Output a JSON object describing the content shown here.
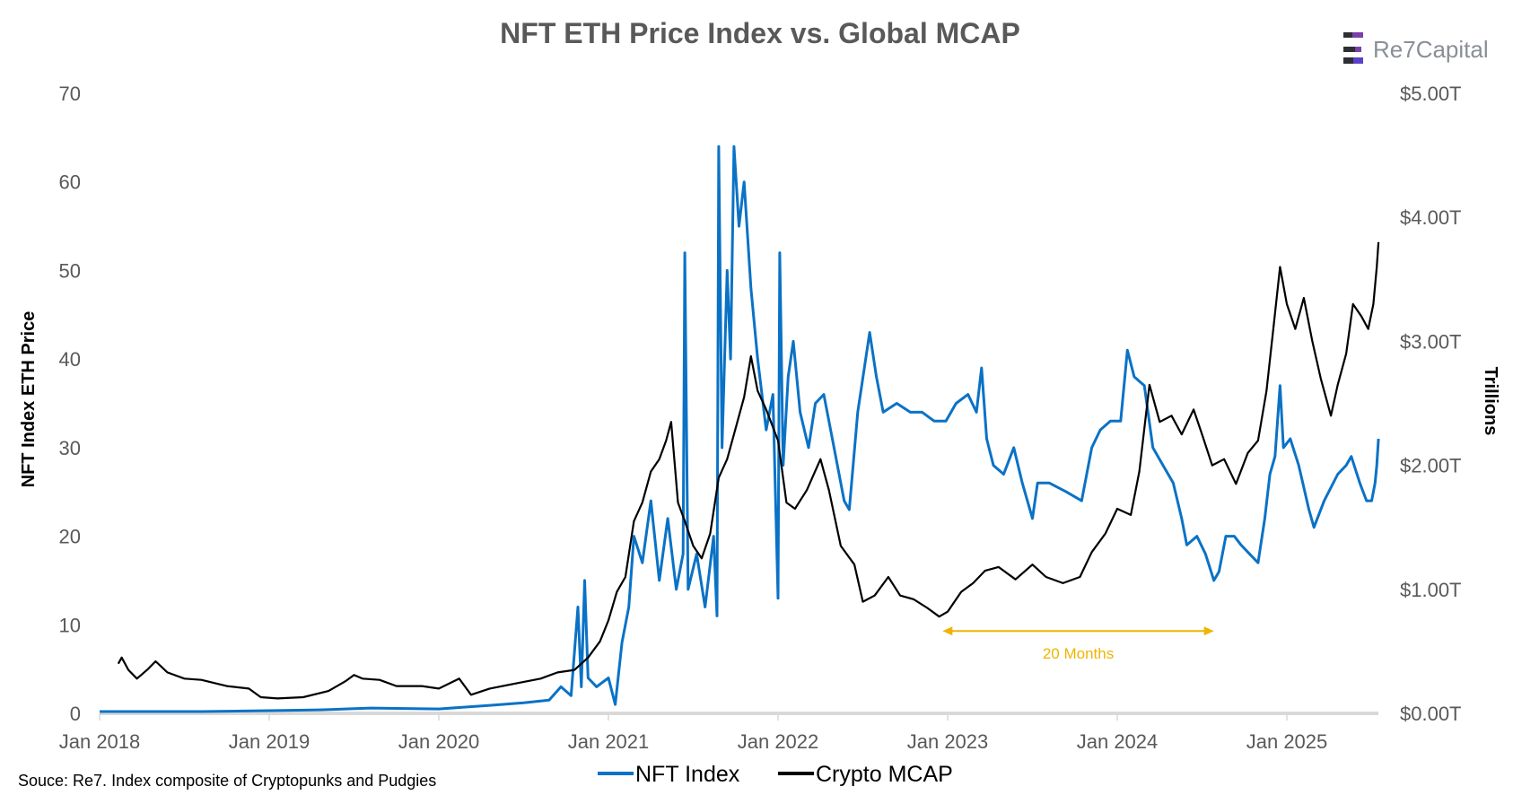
{
  "chart_data": {
    "type": "line",
    "title": "NFT ETH Price Index vs. Global MCAP",
    "logo_text": "Re7Capital",
    "ylabel_left": "NFT Index ETH Price",
    "ylabel_right": "Trillions",
    "source": "Souce: Re7. Index composite of Cryptopunks and Pudgies",
    "x_ticks": [
      "Jan 2018",
      "Jan 2019",
      "Jan 2020",
      "Jan 2021",
      "Jan 2022",
      "Jan 2023",
      "Jan 2024",
      "Jan 2025"
    ],
    "x_tick_years": [
      2018,
      2019,
      2020,
      2021,
      2022,
      2023,
      2024,
      2025
    ],
    "xlim": [
      2018.0,
      2025.54
    ],
    "ylim_left": [
      0,
      70
    ],
    "y_ticks_left": [
      "0",
      "10",
      "20",
      "30",
      "40",
      "50",
      "60",
      "70"
    ],
    "ylim_right": [
      0,
      5
    ],
    "y_ticks_right": [
      "$0.00T",
      "$1.00T",
      "$2.00T",
      "$3.00T",
      "$4.00T",
      "$5.00T"
    ],
    "grid": false,
    "legend": {
      "placement": "bottom-center",
      "items": [
        "NFT Index",
        "Crypto MCAP"
      ]
    },
    "colors": {
      "nft": "#0a72c6",
      "mcap": "#000000",
      "annotation": "#f0b400",
      "axis": "#d9d9d9",
      "text": "#595959"
    },
    "annotation": {
      "label": "20 Months",
      "from": 2022.97,
      "to": 2024.57,
      "y": 9.3
    },
    "series": [
      {
        "name": "NFT Index",
        "axis": "left",
        "points": [
          [
            2018.0,
            0.2
          ],
          [
            2018.3,
            0.2
          ],
          [
            2018.6,
            0.2
          ],
          [
            2019.0,
            0.3
          ],
          [
            2019.3,
            0.4
          ],
          [
            2019.6,
            0.6
          ],
          [
            2020.0,
            0.5
          ],
          [
            2020.3,
            0.9
          ],
          [
            2020.5,
            1.2
          ],
          [
            2020.65,
            1.5
          ],
          [
            2020.72,
            3
          ],
          [
            2020.78,
            2
          ],
          [
            2020.82,
            12
          ],
          [
            2020.84,
            3
          ],
          [
            2020.86,
            15
          ],
          [
            2020.88,
            4
          ],
          [
            2020.93,
            3
          ],
          [
            2021.0,
            4
          ],
          [
            2021.04,
            1
          ],
          [
            2021.08,
            8
          ],
          [
            2021.12,
            12
          ],
          [
            2021.15,
            20
          ],
          [
            2021.2,
            17
          ],
          [
            2021.25,
            24
          ],
          [
            2021.3,
            15
          ],
          [
            2021.35,
            22
          ],
          [
            2021.4,
            14
          ],
          [
            2021.44,
            18
          ],
          [
            2021.45,
            52
          ],
          [
            2021.47,
            14
          ],
          [
            2021.52,
            18
          ],
          [
            2021.57,
            12
          ],
          [
            2021.62,
            20
          ],
          [
            2021.64,
            11
          ],
          [
            2021.65,
            64
          ],
          [
            2021.67,
            30
          ],
          [
            2021.7,
            50
          ],
          [
            2021.72,
            40
          ],
          [
            2021.74,
            64
          ],
          [
            2021.77,
            55
          ],
          [
            2021.8,
            60
          ],
          [
            2021.84,
            48
          ],
          [
            2021.88,
            40
          ],
          [
            2021.93,
            32
          ],
          [
            2021.97,
            36
          ],
          [
            2022.0,
            13
          ],
          [
            2022.01,
            52
          ],
          [
            2022.03,
            28
          ],
          [
            2022.06,
            38
          ],
          [
            2022.09,
            42
          ],
          [
            2022.13,
            34
          ],
          [
            2022.18,
            30
          ],
          [
            2022.22,
            35
          ],
          [
            2022.27,
            36
          ],
          [
            2022.32,
            31
          ],
          [
            2022.39,
            24
          ],
          [
            2022.42,
            23
          ],
          [
            2022.47,
            34
          ],
          [
            2022.54,
            43
          ],
          [
            2022.58,
            38
          ],
          [
            2022.62,
            34
          ],
          [
            2022.7,
            35
          ],
          [
            2022.78,
            34
          ],
          [
            2022.85,
            34
          ],
          [
            2022.92,
            33
          ],
          [
            2022.99,
            33
          ],
          [
            2023.05,
            35
          ],
          [
            2023.12,
            36
          ],
          [
            2023.17,
            34
          ],
          [
            2023.2,
            39
          ],
          [
            2023.23,
            31
          ],
          [
            2023.27,
            28
          ],
          [
            2023.33,
            27
          ],
          [
            2023.39,
            30
          ],
          [
            2023.44,
            26
          ],
          [
            2023.5,
            22
          ],
          [
            2023.53,
            26
          ],
          [
            2023.6,
            26
          ],
          [
            2023.7,
            25
          ],
          [
            2023.79,
            24
          ],
          [
            2023.85,
            30
          ],
          [
            2023.9,
            32
          ],
          [
            2023.96,
            33
          ],
          [
            2024.02,
            33
          ],
          [
            2024.06,
            41
          ],
          [
            2024.1,
            38
          ],
          [
            2024.16,
            37
          ],
          [
            2024.21,
            30
          ],
          [
            2024.27,
            28
          ],
          [
            2024.33,
            26
          ],
          [
            2024.38,
            22
          ],
          [
            2024.41,
            19
          ],
          [
            2024.47,
            20
          ],
          [
            2024.52,
            18
          ],
          [
            2024.57,
            15
          ],
          [
            2024.6,
            16
          ],
          [
            2024.64,
            20
          ],
          [
            2024.69,
            20
          ],
          [
            2024.73,
            19
          ],
          [
            2024.78,
            18
          ],
          [
            2024.83,
            17
          ],
          [
            2024.87,
            22
          ],
          [
            2024.9,
            27
          ],
          [
            2024.93,
            29
          ],
          [
            2024.96,
            37
          ],
          [
            2024.98,
            30
          ],
          [
            2025.02,
            31
          ],
          [
            2025.07,
            28
          ],
          [
            2025.13,
            23
          ],
          [
            2025.16,
            21
          ],
          [
            2025.22,
            24
          ],
          [
            2025.3,
            27
          ],
          [
            2025.35,
            28
          ],
          [
            2025.38,
            29
          ],
          [
            2025.43,
            26
          ],
          [
            2025.47,
            24
          ],
          [
            2025.5,
            24
          ],
          [
            2025.52,
            26
          ],
          [
            2025.53,
            28
          ],
          [
            2025.54,
            31
          ]
        ]
      },
      {
        "name": "Crypto MCAP",
        "axis": "right",
        "points": [
          [
            2018.11,
            0.4
          ],
          [
            2018.13,
            0.45
          ],
          [
            2018.17,
            0.35
          ],
          [
            2018.22,
            0.28
          ],
          [
            2018.28,
            0.35
          ],
          [
            2018.33,
            0.42
          ],
          [
            2018.4,
            0.33
          ],
          [
            2018.5,
            0.28
          ],
          [
            2018.6,
            0.27
          ],
          [
            2018.75,
            0.22
          ],
          [
            2018.88,
            0.2
          ],
          [
            2018.95,
            0.13
          ],
          [
            2019.05,
            0.12
          ],
          [
            2019.2,
            0.13
          ],
          [
            2019.35,
            0.18
          ],
          [
            2019.45,
            0.26
          ],
          [
            2019.5,
            0.31
          ],
          [
            2019.55,
            0.28
          ],
          [
            2019.65,
            0.27
          ],
          [
            2019.75,
            0.22
          ],
          [
            2019.9,
            0.22
          ],
          [
            2020.0,
            0.2
          ],
          [
            2020.12,
            0.28
          ],
          [
            2020.19,
            0.15
          ],
          [
            2020.3,
            0.2
          ],
          [
            2020.45,
            0.24
          ],
          [
            2020.6,
            0.28
          ],
          [
            2020.7,
            0.33
          ],
          [
            2020.8,
            0.35
          ],
          [
            2020.88,
            0.45
          ],
          [
            2020.95,
            0.58
          ],
          [
            2021.0,
            0.75
          ],
          [
            2021.05,
            0.98
          ],
          [
            2021.1,
            1.1
          ],
          [
            2021.15,
            1.55
          ],
          [
            2021.2,
            1.7
          ],
          [
            2021.25,
            1.95
          ],
          [
            2021.3,
            2.05
          ],
          [
            2021.34,
            2.2
          ],
          [
            2021.37,
            2.35
          ],
          [
            2021.41,
            1.7
          ],
          [
            2021.45,
            1.55
          ],
          [
            2021.5,
            1.35
          ],
          [
            2021.55,
            1.25
          ],
          [
            2021.6,
            1.45
          ],
          [
            2021.65,
            1.9
          ],
          [
            2021.7,
            2.05
          ],
          [
            2021.75,
            2.3
          ],
          [
            2021.8,
            2.55
          ],
          [
            2021.84,
            2.88
          ],
          [
            2021.88,
            2.6
          ],
          [
            2021.93,
            2.45
          ],
          [
            2022.0,
            2.2
          ],
          [
            2022.05,
            1.7
          ],
          [
            2022.1,
            1.65
          ],
          [
            2022.17,
            1.8
          ],
          [
            2022.25,
            2.05
          ],
          [
            2022.3,
            1.8
          ],
          [
            2022.37,
            1.35
          ],
          [
            2022.45,
            1.2
          ],
          [
            2022.5,
            0.9
          ],
          [
            2022.57,
            0.95
          ],
          [
            2022.65,
            1.1
          ],
          [
            2022.72,
            0.95
          ],
          [
            2022.8,
            0.92
          ],
          [
            2022.88,
            0.85
          ],
          [
            2022.95,
            0.78
          ],
          [
            2023.0,
            0.82
          ],
          [
            2023.08,
            0.98
          ],
          [
            2023.15,
            1.05
          ],
          [
            2023.22,
            1.15
          ],
          [
            2023.3,
            1.18
          ],
          [
            2023.4,
            1.08
          ],
          [
            2023.5,
            1.2
          ],
          [
            2023.58,
            1.1
          ],
          [
            2023.68,
            1.05
          ],
          [
            2023.78,
            1.1
          ],
          [
            2023.85,
            1.3
          ],
          [
            2023.93,
            1.45
          ],
          [
            2024.0,
            1.65
          ],
          [
            2024.08,
            1.6
          ],
          [
            2024.13,
            1.95
          ],
          [
            2024.19,
            2.65
          ],
          [
            2024.25,
            2.35
          ],
          [
            2024.32,
            2.4
          ],
          [
            2024.38,
            2.25
          ],
          [
            2024.45,
            2.45
          ],
          [
            2024.5,
            2.25
          ],
          [
            2024.56,
            2.0
          ],
          [
            2024.63,
            2.05
          ],
          [
            2024.7,
            1.85
          ],
          [
            2024.77,
            2.1
          ],
          [
            2024.83,
            2.2
          ],
          [
            2024.88,
            2.6
          ],
          [
            2024.92,
            3.1
          ],
          [
            2024.96,
            3.6
          ],
          [
            2025.0,
            3.3
          ],
          [
            2025.05,
            3.1
          ],
          [
            2025.1,
            3.35
          ],
          [
            2025.15,
            3.0
          ],
          [
            2025.2,
            2.7
          ],
          [
            2025.26,
            2.4
          ],
          [
            2025.3,
            2.65
          ],
          [
            2025.35,
            2.9
          ],
          [
            2025.39,
            3.3
          ],
          [
            2025.44,
            3.2
          ],
          [
            2025.48,
            3.1
          ],
          [
            2025.51,
            3.3
          ],
          [
            2025.53,
            3.6
          ],
          [
            2025.54,
            3.8
          ]
        ]
      }
    ]
  }
}
